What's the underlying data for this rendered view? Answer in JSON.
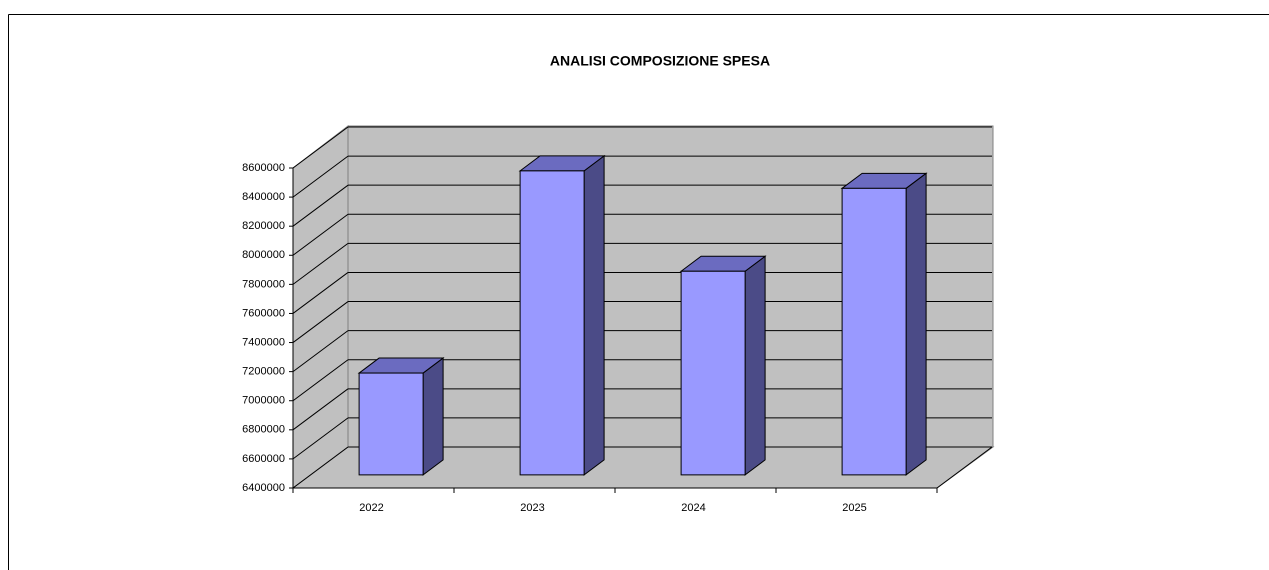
{
  "chart_data": {
    "type": "bar3d",
    "title": "ANALISI COMPOSIZIONE SPESA",
    "categories": [
      "2022",
      "2023",
      "2024",
      "2025"
    ],
    "values": [
      7100000,
      8490000,
      7800000,
      8370000
    ],
    "color": "#9999ff",
    "ylim": [
      6400000,
      8600000
    ],
    "yticks": [
      6400000,
      6600000,
      6800000,
      7000000,
      7200000,
      7400000,
      7600000,
      7800000,
      8000000,
      8200000,
      8400000,
      8600000
    ],
    "grid": true
  }
}
